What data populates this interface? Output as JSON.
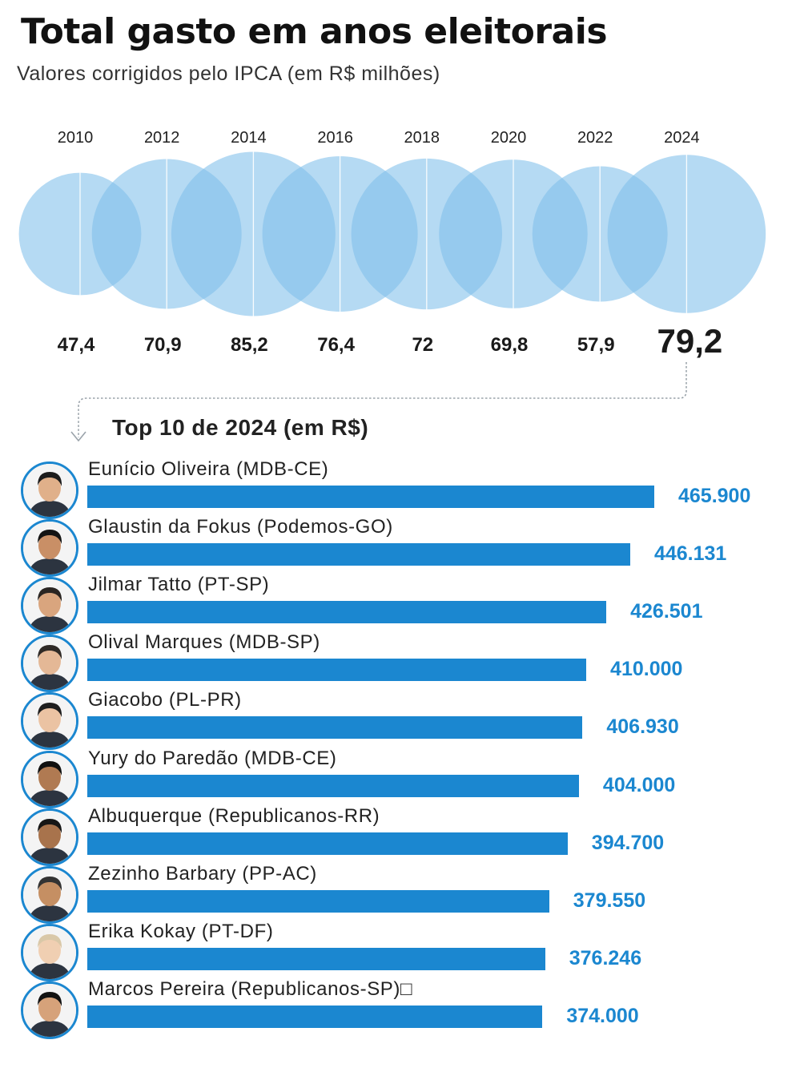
{
  "header": {
    "title": "Total gasto em anos eleitorais",
    "subtitle": "Valores corrigidos pelo IPCA (em R$ milhões)"
  },
  "colors": {
    "bubble": "#7fc0ea",
    "bar": "#1b87d0",
    "value_text": "#1b87d0",
    "avatar_border": "#1b87d0"
  },
  "chart_data": [
    {
      "type": "bubble",
      "categories": [
        "2010",
        "2012",
        "2014",
        "2016",
        "2018",
        "2020",
        "2022",
        "2024"
      ],
      "values": [
        47.4,
        70.9,
        85.2,
        76.4,
        72,
        69.8,
        57.9,
        79.2
      ],
      "value_labels": [
        "47,4",
        "70,9",
        "85,2",
        "76,4",
        "72",
        "69,8",
        "57,9",
        "79,2"
      ],
      "highlight": "2024"
    },
    {
      "type": "bar",
      "orientation": "horizontal",
      "title": "Top 10 de 2024 (em R$)",
      "categories": [
        "Eunício Oliveira (MDB-CE)",
        "Glaustin da Fokus (Podemos-GO)",
        "Jilmar Tatto (PT-SP)",
        "Olival Marques (MDB-SP)",
        "Giacobo (PL-PR)",
        "Yury do Paredão (MDB-CE)",
        "Albuquerque (Republicanos-RR)",
        "Zezinho Barbary (PP-AC)",
        "Erika Kokay (PT-DF)",
        "Marcos Pereira (Republicanos-SP)□"
      ],
      "values": [
        465900,
        446131,
        426501,
        410000,
        406930,
        404000,
        394700,
        379550,
        376246,
        374000
      ],
      "value_labels": [
        "465.900",
        "446.131",
        "426.501",
        "410.000",
        "406.930",
        "404.000",
        "394.700",
        "379.550",
        "376.246",
        "374.000"
      ]
    }
  ]
}
